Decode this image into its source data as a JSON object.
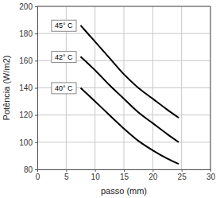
{
  "chart_data": {
    "type": "line",
    "x_label": "passo (mm)",
    "y_label": "Potência (W/m2)",
    "x": [
      7.5,
      10,
      12.5,
      15,
      17.5,
      20,
      22.5,
      24.5
    ],
    "series": [
      {
        "name": "45° C",
        "color": "#000000",
        "values": [
          186,
          174,
          162,
          150,
          140,
          132,
          124,
          118
        ]
      },
      {
        "name": "42° C",
        "color": "#000000",
        "values": [
          163,
          153,
          142,
          132,
          122,
          114,
          106,
          100
        ]
      },
      {
        "name": "40° C",
        "color": "#000000",
        "values": [
          140,
          130,
          120,
          110,
          101,
          94,
          88,
          84
        ]
      }
    ],
    "xlim": [
      0,
      30
    ],
    "xticks": [
      0,
      5,
      10,
      15,
      20,
      25,
      30
    ],
    "ylim": [
      80,
      200
    ],
    "yticks": [
      80,
      100,
      120,
      140,
      160,
      180,
      200
    ],
    "grid": true
  }
}
